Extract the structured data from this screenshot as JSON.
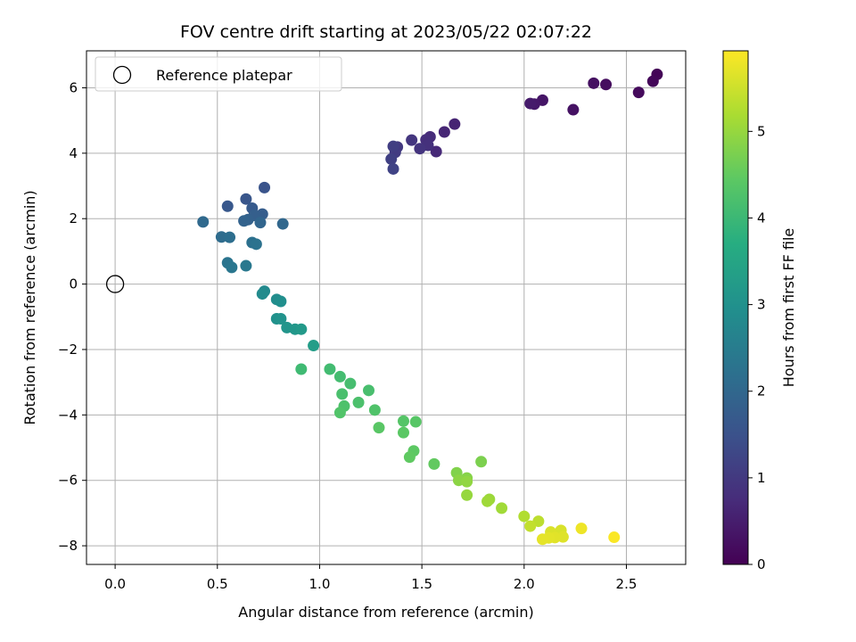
{
  "chart_data": {
    "type": "scatter",
    "title": "FOV centre drift starting at 2023/05/22 02:07:22",
    "xlabel": "Angular distance from reference (arcmin)",
    "ylabel": "Rotation from reference (arcmin)",
    "xlim": [
      -0.14,
      2.79
    ],
    "ylim": [
      -8.57,
      7.13
    ],
    "xticks": [
      0.0,
      0.5,
      1.0,
      1.5,
      2.0,
      2.5
    ],
    "xtick_labels": [
      "0.0",
      "0.5",
      "1.0",
      "1.5",
      "2.0",
      "2.5"
    ],
    "yticks": [
      -8,
      -6,
      -4,
      -2,
      0,
      2,
      4,
      6
    ],
    "ytick_labels": [
      "−8",
      "−6",
      "−4",
      "−2",
      "0",
      "2",
      "4",
      "6"
    ],
    "grid": true,
    "legend": {
      "placement": "top-left",
      "entries": [
        "Reference platepar"
      ]
    },
    "reference_point": {
      "x": 0.0,
      "y": 0.0
    },
    "colorbar": {
      "label": "Hours from first FF file",
      "colormap": "viridis",
      "range": [
        0,
        5.93
      ],
      "ticks": [
        0,
        1,
        2,
        3,
        4,
        5
      ],
      "tick_labels": [
        "0",
        "1",
        "2",
        "3",
        "4",
        "5"
      ]
    },
    "points": [
      {
        "x": 2.65,
        "y": 6.41,
        "t": 0.05
      },
      {
        "x": 2.63,
        "y": 6.2,
        "t": 0.1
      },
      {
        "x": 2.56,
        "y": 5.86,
        "t": 0.15
      },
      {
        "x": 2.4,
        "y": 6.1,
        "t": 0.2
      },
      {
        "x": 2.34,
        "y": 6.14,
        "t": 0.25
      },
      {
        "x": 2.24,
        "y": 5.33,
        "t": 0.3
      },
      {
        "x": 2.09,
        "y": 5.62,
        "t": 0.35
      },
      {
        "x": 2.05,
        "y": 5.5,
        "t": 0.4
      },
      {
        "x": 2.03,
        "y": 5.52,
        "t": 0.45
      },
      {
        "x": 1.66,
        "y": 4.89,
        "t": 0.6
      },
      {
        "x": 1.61,
        "y": 4.65,
        "t": 0.65
      },
      {
        "x": 1.57,
        "y": 4.05,
        "t": 0.7
      },
      {
        "x": 1.54,
        "y": 4.5,
        "t": 0.75
      },
      {
        "x": 1.52,
        "y": 4.41,
        "t": 0.8
      },
      {
        "x": 1.53,
        "y": 4.24,
        "t": 0.85
      },
      {
        "x": 1.49,
        "y": 4.14,
        "t": 0.9
      },
      {
        "x": 1.45,
        "y": 4.4,
        "t": 0.95
      },
      {
        "x": 1.38,
        "y": 4.19,
        "t": 1.0
      },
      {
        "x": 1.37,
        "y": 4.03,
        "t": 1.05
      },
      {
        "x": 1.36,
        "y": 4.21,
        "t": 1.1
      },
      {
        "x": 1.35,
        "y": 3.82,
        "t": 1.15
      },
      {
        "x": 1.36,
        "y": 3.52,
        "t": 1.2
      },
      {
        "x": 0.73,
        "y": 2.95,
        "t": 1.55
      },
      {
        "x": 0.64,
        "y": 2.6,
        "t": 1.6
      },
      {
        "x": 0.55,
        "y": 2.38,
        "t": 1.65
      },
      {
        "x": 0.67,
        "y": 2.32,
        "t": 1.7
      },
      {
        "x": 0.72,
        "y": 2.14,
        "t": 1.75
      },
      {
        "x": 0.68,
        "y": 2.1,
        "t": 1.8
      },
      {
        "x": 0.65,
        "y": 1.97,
        "t": 1.85
      },
      {
        "x": 0.63,
        "y": 1.93,
        "t": 1.9
      },
      {
        "x": 0.71,
        "y": 1.88,
        "t": 1.95
      },
      {
        "x": 0.82,
        "y": 1.84,
        "t": 2.0
      },
      {
        "x": 0.43,
        "y": 1.9,
        "t": 2.05
      },
      {
        "x": 0.52,
        "y": 1.44,
        "t": 2.1
      },
      {
        "x": 0.56,
        "y": 1.43,
        "t": 2.15
      },
      {
        "x": 0.67,
        "y": 1.27,
        "t": 2.2
      },
      {
        "x": 0.69,
        "y": 1.22,
        "t": 2.25
      },
      {
        "x": 0.55,
        "y": 0.65,
        "t": 2.3
      },
      {
        "x": 0.57,
        "y": 0.51,
        "t": 2.35
      },
      {
        "x": 0.64,
        "y": 0.56,
        "t": 2.4
      },
      {
        "x": 0.73,
        "y": -0.22,
        "t": 2.8
      },
      {
        "x": 0.72,
        "y": -0.3,
        "t": 2.85
      },
      {
        "x": 0.79,
        "y": -0.47,
        "t": 2.9
      },
      {
        "x": 0.81,
        "y": -0.53,
        "t": 2.95
      },
      {
        "x": 0.79,
        "y": -1.06,
        "t": 3.0
      },
      {
        "x": 0.81,
        "y": -1.06,
        "t": 3.05
      },
      {
        "x": 0.84,
        "y": -1.33,
        "t": 3.1
      },
      {
        "x": 0.88,
        "y": -1.38,
        "t": 3.15
      },
      {
        "x": 0.91,
        "y": -1.38,
        "t": 3.2
      },
      {
        "x": 0.97,
        "y": -1.88,
        "t": 3.3
      },
      {
        "x": 0.91,
        "y": -2.6,
        "t": 4.05
      },
      {
        "x": 1.05,
        "y": -2.6,
        "t": 4.1
      },
      {
        "x": 1.1,
        "y": -2.83,
        "t": 4.12
      },
      {
        "x": 1.15,
        "y": -3.04,
        "t": 4.15
      },
      {
        "x": 1.24,
        "y": -3.25,
        "t": 4.18
      },
      {
        "x": 1.11,
        "y": -3.36,
        "t": 4.2
      },
      {
        "x": 1.19,
        "y": -3.62,
        "t": 4.22
      },
      {
        "x": 1.12,
        "y": -3.73,
        "t": 4.25
      },
      {
        "x": 1.27,
        "y": -3.85,
        "t": 4.28
      },
      {
        "x": 1.1,
        "y": -3.93,
        "t": 4.3
      },
      {
        "x": 1.41,
        "y": -4.19,
        "t": 4.35
      },
      {
        "x": 1.47,
        "y": -4.21,
        "t": 4.38
      },
      {
        "x": 1.29,
        "y": -4.39,
        "t": 4.4
      },
      {
        "x": 1.41,
        "y": -4.54,
        "t": 4.42
      },
      {
        "x": 1.46,
        "y": -5.1,
        "t": 4.45
      },
      {
        "x": 1.44,
        "y": -5.29,
        "t": 4.48
      },
      {
        "x": 1.56,
        "y": -5.5,
        "t": 4.5
      },
      {
        "x": 1.79,
        "y": -5.43,
        "t": 4.75
      },
      {
        "x": 1.67,
        "y": -5.77,
        "t": 4.8
      },
      {
        "x": 1.72,
        "y": -5.93,
        "t": 4.85
      },
      {
        "x": 1.68,
        "y": -6.0,
        "t": 4.9
      },
      {
        "x": 1.72,
        "y": -6.04,
        "t": 4.95
      },
      {
        "x": 1.72,
        "y": -6.45,
        "t": 5.0
      },
      {
        "x": 1.83,
        "y": -6.58,
        "t": 5.05
      },
      {
        "x": 1.82,
        "y": -6.64,
        "t": 5.08
      },
      {
        "x": 1.89,
        "y": -6.85,
        "t": 5.1
      },
      {
        "x": 2.0,
        "y": -7.1,
        "t": 5.25
      },
      {
        "x": 2.07,
        "y": -7.25,
        "t": 5.35
      },
      {
        "x": 2.03,
        "y": -7.4,
        "t": 5.4
      },
      {
        "x": 2.18,
        "y": -7.53,
        "t": 5.6
      },
      {
        "x": 2.13,
        "y": -7.58,
        "t": 5.62
      },
      {
        "x": 2.19,
        "y": -7.73,
        "t": 5.65
      },
      {
        "x": 2.15,
        "y": -7.75,
        "t": 5.68
      },
      {
        "x": 2.12,
        "y": -7.76,
        "t": 5.7
      },
      {
        "x": 2.09,
        "y": -7.8,
        "t": 5.72
      },
      {
        "x": 2.28,
        "y": -7.47,
        "t": 5.8
      },
      {
        "x": 2.44,
        "y": -7.74,
        "t": 5.9
      }
    ]
  }
}
